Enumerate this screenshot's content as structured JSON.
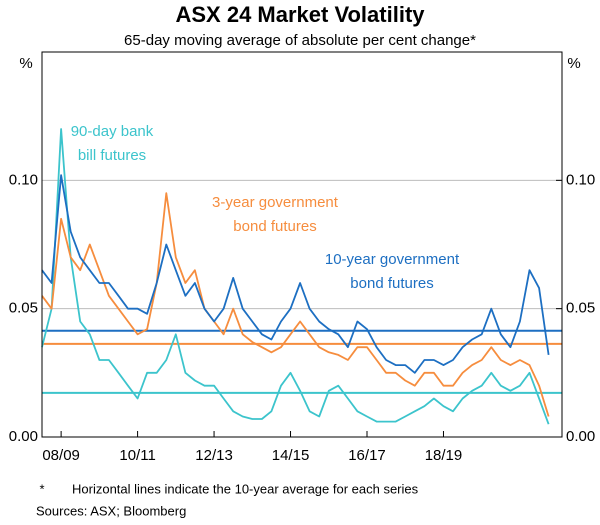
{
  "chart_data": {
    "type": "line",
    "title": "ASX 24 Market Volatility",
    "subtitle": "65-day moving average of absolute per cent change*",
    "y_unit": "%",
    "y2_unit": "%",
    "footnote_marker": "*",
    "footnote": "Horizontal lines indicate the 10-year average for each series",
    "source": "Sources: ASX; Bloomberg",
    "xlim": [
      2008.5,
      2022.1
    ],
    "xticks": [
      {
        "value": 2009,
        "label": "08/09"
      },
      {
        "value": 2011,
        "label": "10/11"
      },
      {
        "value": 2013,
        "label": "12/13"
      },
      {
        "value": 2015,
        "label": "14/15"
      },
      {
        "value": 2017,
        "label": "16/17"
      },
      {
        "value": 2019,
        "label": "18/19"
      }
    ],
    "ylim": [
      0,
      0.15
    ],
    "yticks": [
      {
        "value": 0,
        "label": "0.00"
      },
      0.05,
      {
        "value": 0.1,
        "label": "0.10"
      }
    ],
    "y2lim": [
      0,
      0.15
    ],
    "y2ticks": [
      {
        "value": 0,
        "label": "0.00"
      },
      0.05,
      {
        "value": 0.1,
        "label": "0.10"
      }
    ],
    "grid": true,
    "x": [
      2008.5,
      2008.75,
      2009,
      2009.25,
      2009.5,
      2009.75,
      2010,
      2010.25,
      2010.5,
      2010.75,
      2011,
      2011.25,
      2011.5,
      2011.75,
      2012,
      2012.25,
      2012.5,
      2012.75,
      2013,
      2013.25,
      2013.5,
      2013.75,
      2014,
      2014.25,
      2014.5,
      2014.75,
      2015,
      2015.25,
      2015.5,
      2015.75,
      2016,
      2016.25,
      2016.5,
      2016.75,
      2017,
      2017.25,
      2017.5,
      2017.75,
      2018,
      2018.25,
      2018.5,
      2018.75,
      2019,
      2019.25,
      2019.5,
      2019.75,
      2020,
      2020.25,
      2020.5,
      2020.75,
      2021,
      2021.25,
      2021.5,
      2021.75
    ],
    "series": [
      {
        "name": [
          "90-day bank",
          "bill futures"
        ],
        "color": "#3cc4cc",
        "average": 0.0172,
        "values": [
          0.035,
          0.05,
          0.12,
          0.07,
          0.045,
          0.04,
          0.03,
          0.03,
          0.025,
          0.02,
          0.015,
          0.025,
          0.025,
          0.03,
          0.04,
          0.025,
          0.022,
          0.02,
          0.02,
          0.015,
          0.01,
          0.008,
          0.007,
          0.007,
          0.01,
          0.02,
          0.025,
          0.018,
          0.01,
          0.008,
          0.018,
          0.02,
          0.015,
          0.01,
          0.008,
          0.006,
          0.006,
          0.006,
          0.008,
          0.01,
          0.012,
          0.015,
          0.012,
          0.01,
          0.015,
          0.018,
          0.02,
          0.025,
          0.02,
          0.018,
          0.02,
          0.025,
          0.015,
          0.005
        ]
      },
      {
        "name": [
          "3-year government",
          "bond futures"
        ],
        "color": "#f68d3e",
        "average": 0.0363,
        "values": [
          0.055,
          0.05,
          0.085,
          0.07,
          0.065,
          0.075,
          0.065,
          0.055,
          0.05,
          0.045,
          0.04,
          0.042,
          0.06,
          0.095,
          0.07,
          0.06,
          0.065,
          0.05,
          0.045,
          0.04,
          0.05,
          0.04,
          0.037,
          0.035,
          0.033,
          0.035,
          0.04,
          0.045,
          0.04,
          0.035,
          0.033,
          0.032,
          0.03,
          0.035,
          0.035,
          0.03,
          0.025,
          0.025,
          0.022,
          0.02,
          0.025,
          0.025,
          0.02,
          0.02,
          0.025,
          0.028,
          0.03,
          0.035,
          0.03,
          0.028,
          0.03,
          0.028,
          0.02,
          0.008
        ]
      },
      {
        "name": [
          "10-year government",
          "bond futures"
        ],
        "color": "#1d6fc2",
        "average": 0.0414,
        "values": [
          0.065,
          0.06,
          0.102,
          0.08,
          0.07,
          0.065,
          0.06,
          0.06,
          0.055,
          0.05,
          0.05,
          0.048,
          0.06,
          0.075,
          0.065,
          0.055,
          0.06,
          0.05,
          0.045,
          0.05,
          0.062,
          0.05,
          0.045,
          0.04,
          0.038,
          0.045,
          0.05,
          0.06,
          0.05,
          0.045,
          0.042,
          0.04,
          0.035,
          0.045,
          0.042,
          0.035,
          0.03,
          0.028,
          0.028,
          0.025,
          0.03,
          0.03,
          0.028,
          0.03,
          0.035,
          0.038,
          0.04,
          0.05,
          0.04,
          0.035,
          0.045,
          0.065,
          0.058,
          0.032
        ]
      }
    ]
  }
}
